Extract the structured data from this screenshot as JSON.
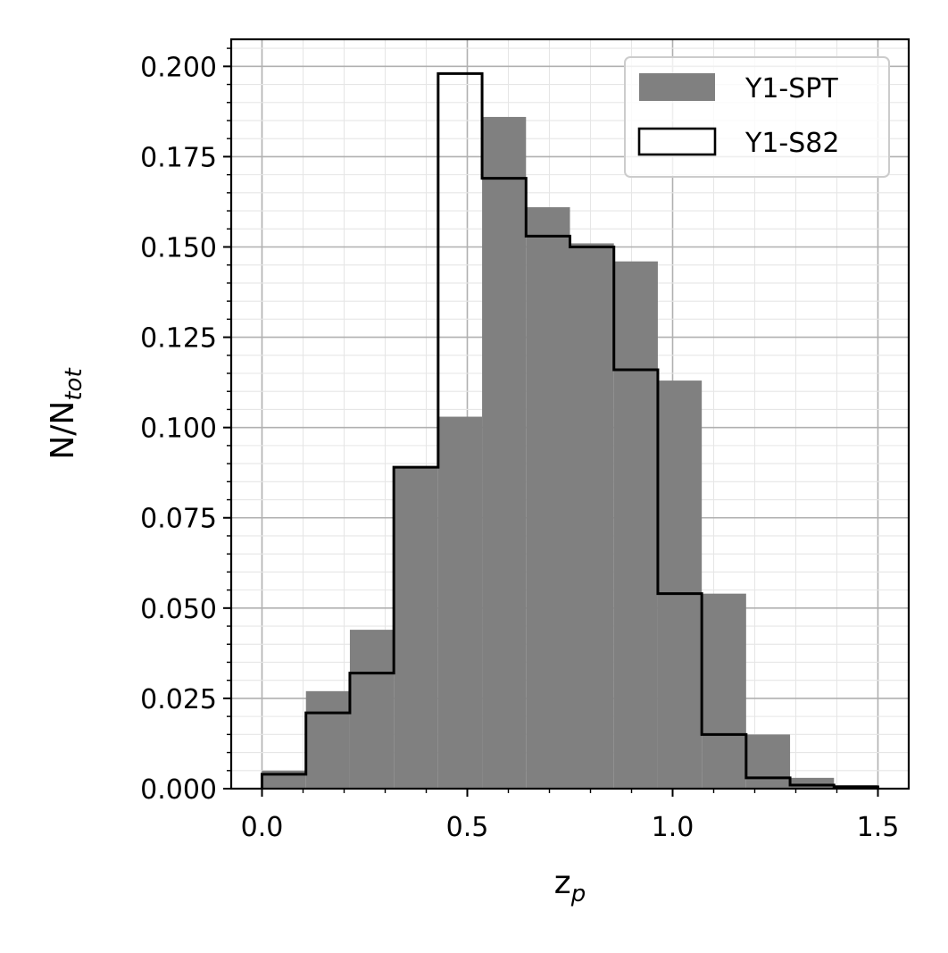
{
  "chart_data": {
    "type": "bar",
    "subtype": "histogram",
    "bin_edges": [
      0.0,
      0.107,
      0.214,
      0.321,
      0.429,
      0.536,
      0.643,
      0.75,
      0.857,
      0.964,
      1.071,
      1.179,
      1.286,
      1.393,
      1.5
    ],
    "series": [
      {
        "name": "Y1-SPT",
        "style": "filled",
        "color": "#808080",
        "values": [
          0.005,
          0.027,
          0.044,
          0.089,
          0.103,
          0.186,
          0.161,
          0.151,
          0.146,
          0.113,
          0.054,
          0.015,
          0.003,
          0.001
        ]
      },
      {
        "name": "Y1-S82",
        "style": "step",
        "color": "#000000",
        "values": [
          0.004,
          0.021,
          0.032,
          0.089,
          0.198,
          0.169,
          0.153,
          0.15,
          0.116,
          0.054,
          0.015,
          0.003,
          0.001,
          0.0005
        ]
      }
    ],
    "xlabel": "z",
    "xlabel_sub": "p",
    "ylabel": "N/N",
    "ylabel_sub": "tot",
    "xlim": [
      -0.075,
      1.575
    ],
    "ylim": [
      0.0,
      0.2075
    ],
    "xticks": [
      0.0,
      0.5,
      1.0,
      1.5
    ],
    "xtick_labels": [
      "0.0",
      "0.5",
      "1.0",
      "1.5"
    ],
    "yticks": [
      0.0,
      0.025,
      0.05,
      0.075,
      0.1,
      0.125,
      0.15,
      0.175,
      0.2
    ],
    "ytick_labels": [
      "0.000",
      "0.025",
      "0.050",
      "0.075",
      "0.100",
      "0.125",
      "0.150",
      "0.175",
      "0.200"
    ],
    "x_minor_step": 0.1,
    "y_minor_step": 0.005,
    "grid": true,
    "minor_grid": true,
    "legend_position": "top-right"
  }
}
